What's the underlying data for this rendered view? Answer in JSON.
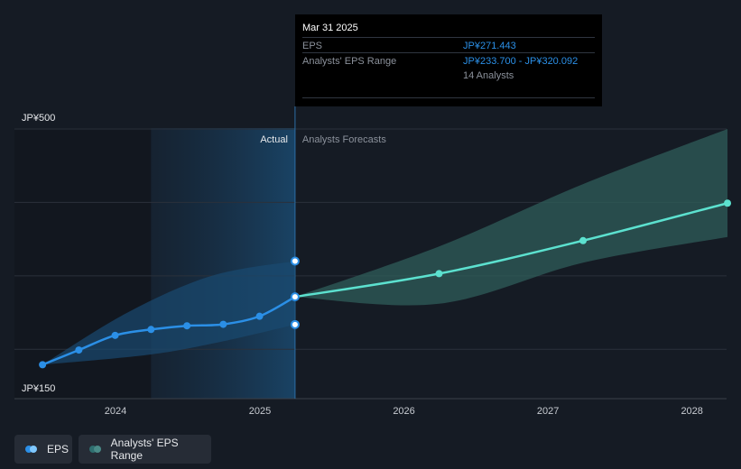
{
  "chart_data": {
    "type": "line",
    "y_axis_labels": [
      "JP¥500",
      "JP¥150"
    ],
    "ylim": [
      150,
      500
    ],
    "x_ticks": [
      "2024",
      "2025",
      "2026",
      "2027",
      "2028"
    ],
    "region_labels": {
      "actual": "Actual",
      "forecast": "Analysts Forecasts"
    },
    "series": [
      {
        "name": "EPS",
        "color": "#2b8fe6",
        "points": [
          {
            "x": "2023-06-30",
            "y": 179
          },
          {
            "x": "2023-09-30",
            "y": 199
          },
          {
            "x": "2023-12-31",
            "y": 219
          },
          {
            "x": "2024-03-31",
            "y": 227
          },
          {
            "x": "2024-06-30",
            "y": 232
          },
          {
            "x": "2024-09-30",
            "y": 234
          },
          {
            "x": "2024-12-31",
            "y": 245
          },
          {
            "x": "2025-03-31",
            "y": 271.443
          }
        ]
      },
      {
        "name": "EPS Forecast",
        "color": "#5ce1cf",
        "points": [
          {
            "x": "2025-03-31",
            "y": 271.443
          },
          {
            "x": "2026-03-31",
            "y": 303
          },
          {
            "x": "2027-03-31",
            "y": 348
          },
          {
            "x": "2028-03-31",
            "y": 399
          }
        ]
      }
    ],
    "range": {
      "name": "Analysts' EPS Range",
      "actual": {
        "upper": [
          {
            "x": "2023-06-30",
            "y": 179
          },
          {
            "x": "2024-01-31",
            "y": 250
          },
          {
            "x": "2024-08-31",
            "y": 300
          },
          {
            "x": "2025-03-31",
            "y": 320.092
          }
        ],
        "lower": [
          {
            "x": "2023-06-30",
            "y": 179
          },
          {
            "x": "2024-03-31",
            "y": 193
          },
          {
            "x": "2024-09-30",
            "y": 211
          },
          {
            "x": "2025-03-31",
            "y": 233.7
          }
        ]
      },
      "forecast": {
        "upper": [
          {
            "x": "2025-03-31",
            "y": 271.443
          },
          {
            "x": "2026-03-31",
            "y": 340
          },
          {
            "x": "2027-03-31",
            "y": 425
          },
          {
            "x": "2028-03-31",
            "y": 500
          }
        ],
        "lower": [
          {
            "x": "2025-03-31",
            "y": 271.443
          },
          {
            "x": "2026-03-31",
            "y": 262
          },
          {
            "x": "2027-03-31",
            "y": 318
          },
          {
            "x": "2028-03-31",
            "y": 353
          }
        ]
      }
    },
    "highlight_dots": [
      {
        "x": "2025-03-31",
        "y": 320.092
      },
      {
        "x": "2025-03-31",
        "y": 271.443
      },
      {
        "x": "2025-03-31",
        "y": 233.7
      }
    ],
    "colors": {
      "eps": "#2b8fe6",
      "forecast": "#5ce1cf",
      "forecast_range": "#2f5e5a",
      "actual_range": "#1a4a70",
      "grid": "#2b313b"
    }
  },
  "tooltip": {
    "title": "Mar 31 2025",
    "eps_label": "EPS",
    "eps_value": "JP¥271.443",
    "range_label": "Analysts' EPS Range",
    "range_value": "JP¥233.700 - JP¥320.092",
    "analysts": "14 Analysts"
  },
  "legend": {
    "eps": {
      "label": "EPS",
      "color_a": "#2b8fe6",
      "color_b": "#7fc8ff"
    },
    "range": {
      "label": "Analysts' EPS Range",
      "color_a": "#2f6f70",
      "color_b": "#4a8b88"
    }
  }
}
